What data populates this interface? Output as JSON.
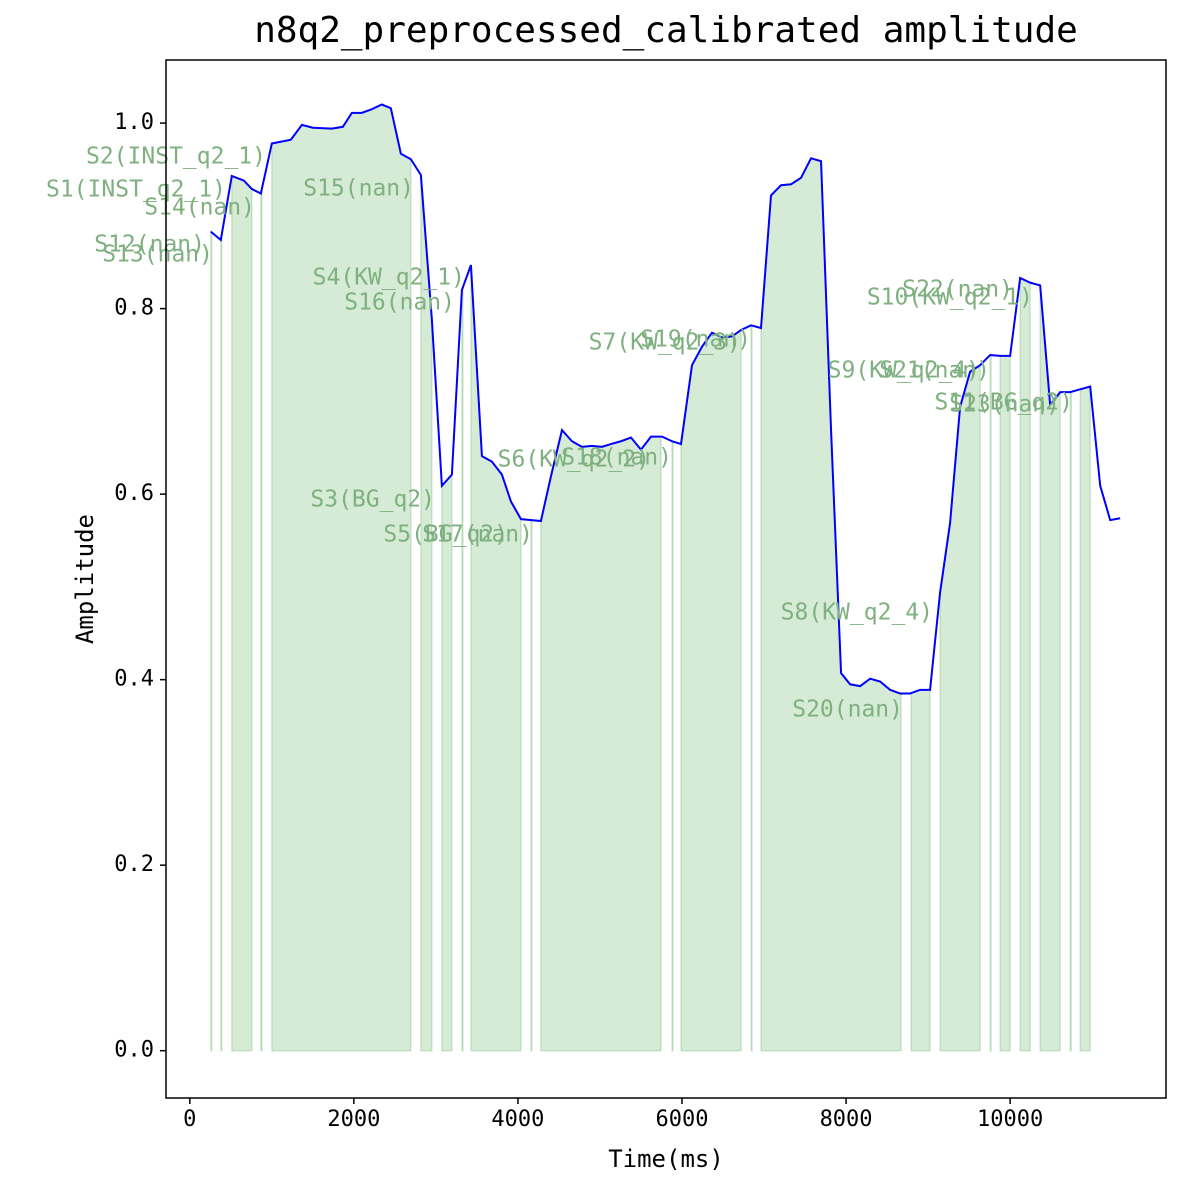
{
  "chart_data": {
    "type": "line",
    "title": "n8q2_preprocessed_calibrated amplitude",
    "x_label": "Time(ms)",
    "y_label": "Amplitude",
    "color": "blue",
    "x": [
      256,
      378,
      512,
      659,
      756,
      866,
      1000,
      1232,
      1366,
      1500,
      1732,
      1866,
      1976,
      2098,
      2220,
      2341,
      2451,
      2573,
      2695,
      2817,
      2951,
      3073,
      3195,
      3317,
      3427,
      3561,
      3683,
      3805,
      3915,
      4037,
      4280,
      4402,
      4537,
      4659,
      4780,
      4902,
      5024,
      5134,
      5256,
      5378,
      5500,
      5622,
      5756,
      5878,
      5988,
      6122,
      6244,
      6366,
      6488,
      6610,
      6720,
      6842,
      6963,
      7085,
      7207,
      7329,
      7451,
      7573,
      7695,
      7817,
      7939,
      8049,
      8171,
      8293,
      8415,
      8537,
      8659,
      8780,
      8902,
      9024,
      9146,
      9268,
      9390,
      9512,
      9634,
      9756,
      9878,
      10000,
      10122,
      10244,
      10366,
      10488,
      10610,
      10732,
      10854,
      10976,
      11098,
      11220,
      11341
    ],
    "values": [
      0.883,
      0.874,
      0.943,
      0.938,
      0.929,
      0.924,
      0.978,
      0.982,
      0.998,
      0.995,
      0.994,
      0.996,
      1.011,
      1.011,
      1.015,
      1.02,
      1.016,
      0.967,
      0.961,
      0.944,
      0.788,
      0.609,
      0.621,
      0.82,
      0.847,
      0.641,
      0.635,
      0.621,
      0.592,
      0.573,
      0.571,
      0.619,
      0.669,
      0.657,
      0.651,
      0.652,
      0.651,
      0.654,
      0.657,
      0.661,
      0.648,
      0.662,
      0.662,
      0.657,
      0.654,
      0.739,
      0.759,
      0.774,
      0.769,
      0.77,
      0.777,
      0.782,
      0.779,
      0.922,
      0.933,
      0.934,
      0.941,
      0.962,
      0.959,
      0.669,
      0.407,
      0.395,
      0.393,
      0.401,
      0.398,
      0.389,
      0.385,
      0.385,
      0.389,
      0.389,
      0.494,
      0.569,
      0.694,
      0.732,
      0.739,
      0.75,
      0.749,
      0.749,
      0.833,
      0.828,
      0.825,
      0.696,
      0.71,
      0.71,
      0.713,
      0.716,
      0.609,
      0.572,
      0.574
    ],
    "segment_color": "green",
    "segments": [
      {
        "label": "S1(INST_q2_1)",
        "start": 512,
        "end": 756
      },
      {
        "label": "S2(INST_q2_1)",
        "start": 866,
        "end": 880
      },
      {
        "label": "S3(BG_q2)",
        "start": 2817,
        "end": 2951
      },
      {
        "label": "S4(KW_q2_1)",
        "start": 3317,
        "end": 3330
      },
      {
        "label": "S5(BG_q2)",
        "start": 3427,
        "end": 4037
      },
      {
        "label": "S6(KW_q2_2)",
        "start": 4280,
        "end": 5744
      },
      {
        "label": "S7(KW_q2_3)",
        "start": 5988,
        "end": 6720
      },
      {
        "label": "S8(KW_q2_4)",
        "start": 8793,
        "end": 9024
      },
      {
        "label": "S9(KW_q2_4)",
        "start": 9146,
        "end": 9634
      },
      {
        "label": "S10(KW_q2_1)",
        "start": 10122,
        "end": 10244
      },
      {
        "label": "S11(BG_q2)",
        "start": 10854,
        "end": 10976
      },
      {
        "label": "S12(nan)",
        "start": 256,
        "end": 268
      },
      {
        "label": "S13(nan)",
        "start": 378,
        "end": 390
      },
      {
        "label": "S14(nan)",
        "start": 10732,
        "end": 10745
      },
      {
        "label": "S15(nan)",
        "start": 1000,
        "end": 2695
      },
      {
        "label": "S16(nan)",
        "start": 3073,
        "end": 3195
      },
      {
        "label": "S17(nan)",
        "start": 4159,
        "end": 4171
      },
      {
        "label": "S18(nan)",
        "start": 5878,
        "end": 5890
      },
      {
        "label": "S19(nan)",
        "start": 6842,
        "end": 6854
      },
      {
        "label": "S20(nan)",
        "start": 6963,
        "end": 8671
      },
      {
        "label": "S21(nan)",
        "start": 9756,
        "end": 9768
      },
      {
        "label": "S22(nan)",
        "start": 9878,
        "end": 10000
      },
      {
        "label": "S23(nan)",
        "start": 10366,
        "end": 10610
      }
    ],
    "xlim": [
      -290,
      11900
    ],
    "ylim": [
      -0.051,
      1.068
    ],
    "xticks": [
      0,
      2000,
      4000,
      6000,
      8000,
      10000
    ],
    "yticks": [
      {
        "value": 0,
        "label": "0.0"
      },
      {
        "value": 0.2,
        "label": "0.2"
      },
      {
        "value": 0.4,
        "label": "0.4"
      },
      {
        "value": 0.6,
        "label": "0.6"
      },
      {
        "value": 0.8,
        "label": "0.8"
      },
      {
        "value": 1,
        "label": "1.0"
      }
    ]
  }
}
